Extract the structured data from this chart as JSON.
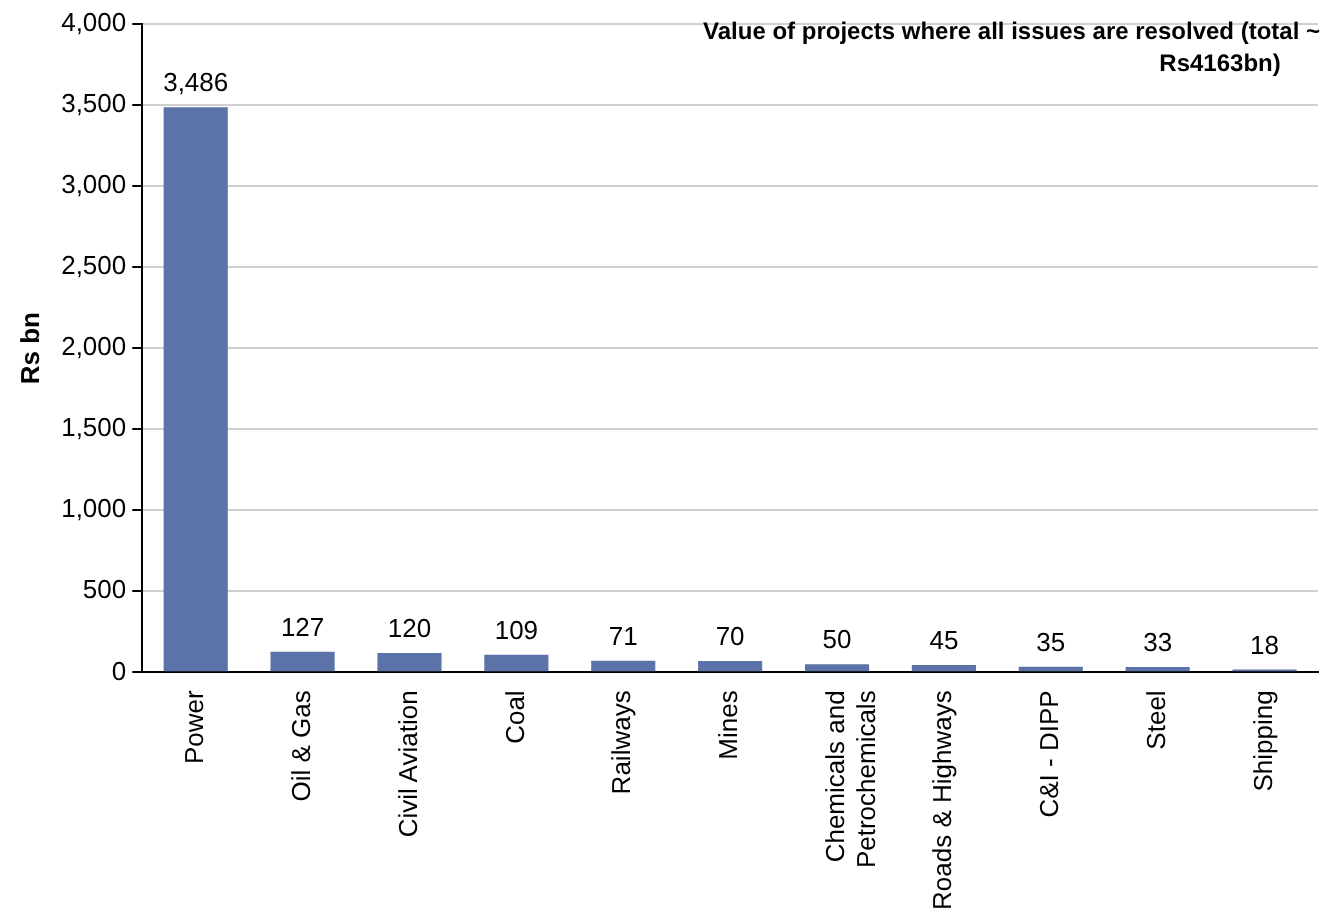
{
  "chart_data": {
    "type": "bar",
    "title": "Value of projects where all issues are resolved (total ~ Rs4163bn)",
    "ylabel": "Rs bn",
    "categories": [
      "Power",
      "Oil & Gas",
      "Civil Aviation",
      "Coal",
      "Railways",
      "Mines",
      "Chemicals and Petrochemicals",
      "Roads & Highways",
      "C&I - DIPP",
      "Steel",
      "Shipping"
    ],
    "values": [
      3486,
      127,
      120,
      109,
      71,
      70,
      50,
      45,
      35,
      33,
      18
    ],
    "color": "#5b73a8",
    "value_labels": [
      "3,486",
      "127",
      "120",
      "109",
      "71",
      "70",
      "50",
      "45",
      "35",
      "33",
      "18"
    ],
    "ylim": [
      0,
      4000
    ],
    "yticks": [
      0,
      500,
      {
        "value": 1000,
        "label": "1,000"
      },
      {
        "value": 1500,
        "label": "1,500"
      },
      {
        "value": 2000,
        "label": "2,000"
      },
      {
        "value": 2500,
        "label": "2,500"
      },
      {
        "value": 3000,
        "label": "3,000"
      },
      {
        "value": 3500,
        "label": "3,500"
      },
      {
        "value": 4000,
        "label": "4,000"
      }
    ],
    "grid": "y",
    "legend": false
  }
}
